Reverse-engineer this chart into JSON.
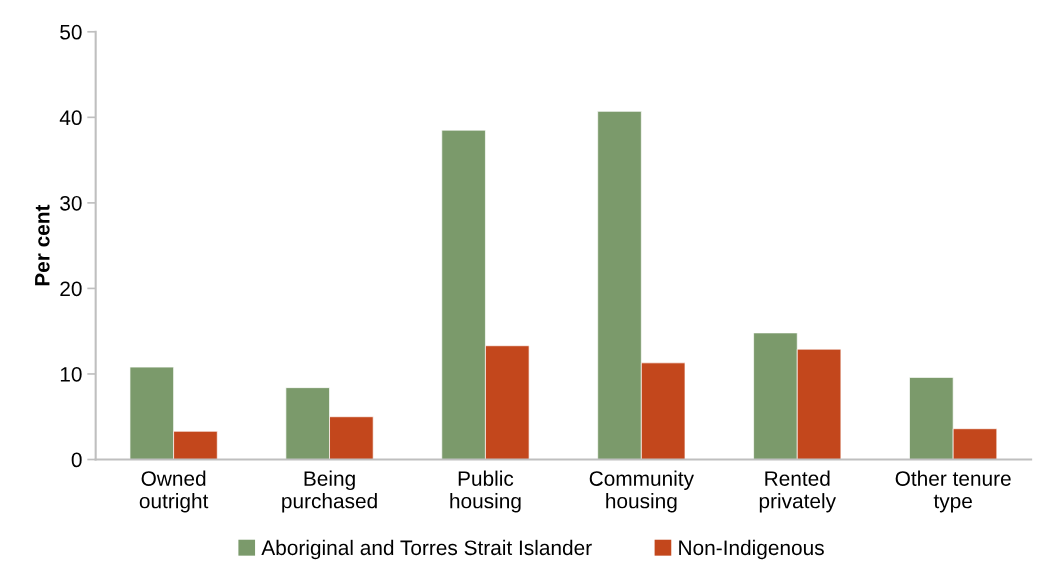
{
  "chart_data": {
    "type": "bar",
    "ylabel": "Per cent",
    "categories": [
      "Owned\noutright",
      "Being\npurchased",
      "Public\nhousing",
      "Community\nhousing",
      "Rented\nprivately",
      "Other tenure\ntype"
    ],
    "series": [
      {
        "name": "Aboriginal and Torres Strait Islander",
        "color": "#7b9a6b",
        "values": [
          10.8,
          8.4,
          38.5,
          40.7,
          14.8,
          9.6
        ]
      },
      {
        "name": "Non-Indigenous",
        "color": "#c3471c",
        "values": [
          3.3,
          5.0,
          13.3,
          11.3,
          12.9,
          3.6
        ]
      }
    ],
    "ylim": [
      0,
      50
    ],
    "yticks": [
      0,
      10,
      20,
      30,
      40,
      50
    ],
    "grid": false,
    "legend": "bottom"
  }
}
